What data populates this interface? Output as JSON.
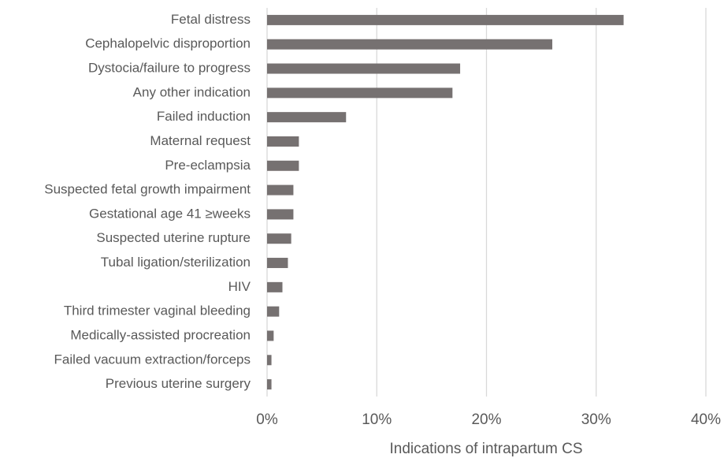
{
  "chart_data": {
    "type": "bar",
    "orientation": "horizontal",
    "x_label": "Indications of intrapartum CS",
    "categories": [
      "Fetal distress",
      "Cephalopelvic disproportion",
      "Dystocia/failure to progress",
      "Any other indication",
      "Failed induction",
      "Maternal request",
      "Pre-eclampsia",
      "Suspected fetal growth impairment",
      "Gestational age 41 ≥weeks",
      "Suspected uterine rupture",
      "Tubal ligation/sterilization",
      "HIV",
      "Third trimester vaginal bleeding",
      "Medically-assisted procreation",
      "Failed vacuum extraction/forceps",
      "Previous uterine surgery"
    ],
    "values": [
      32.5,
      26.0,
      17.6,
      16.9,
      7.2,
      2.9,
      2.9,
      2.4,
      2.4,
      2.2,
      1.9,
      1.4,
      1.1,
      0.6,
      0.4,
      0.4
    ],
    "color": "#767171",
    "xlim": [
      0,
      40
    ],
    "xticks": [
      {
        "value": 0,
        "label": "0%"
      },
      {
        "value": 10,
        "label": "10%"
      },
      {
        "value": 20,
        "label": "20%"
      },
      {
        "value": 30,
        "label": "30%"
      },
      {
        "value": 40,
        "label": "40%"
      }
    ],
    "grid": true
  }
}
